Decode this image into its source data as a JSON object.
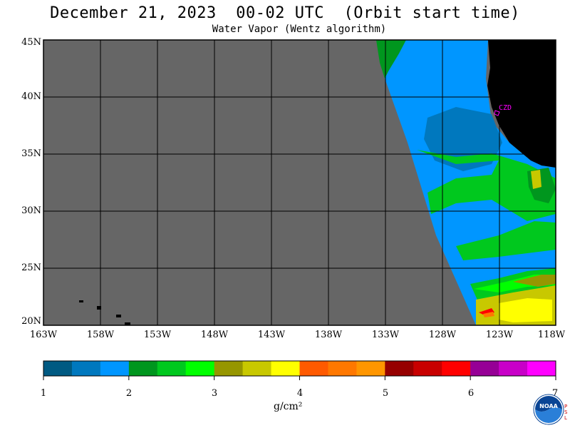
{
  "header": {
    "title": "December 21, 2023  00-02 UTC  (Orbit start time)",
    "subtitle": "Water Vapor (Wentz algorithm)"
  },
  "map": {
    "lat_labels": [
      "45N",
      "40N",
      "35N",
      "30N",
      "25N",
      "20N"
    ],
    "lon_labels": [
      "163W",
      "158W",
      "153W",
      "148W",
      "143W",
      "138W",
      "133W",
      "128W",
      "123W",
      "118W"
    ],
    "station_label": "CZD",
    "colors": {
      "no_data": "#666666",
      "land": "#000000",
      "grid": "#000000"
    }
  },
  "colorbar": {
    "tick_labels": [
      "1",
      "2",
      "3",
      "4",
      "5",
      "6",
      "7"
    ],
    "unit_label": "g/cm²",
    "colors": [
      "#005a82",
      "#0078be",
      "#0096ff",
      "#00961e",
      "#00c81e",
      "#00ff00",
      "#969600",
      "#c8c800",
      "#ffff00",
      "#ff5a00",
      "#ff7800",
      "#ff9600",
      "#960000",
      "#c80000",
      "#ff0000",
      "#960096",
      "#c800c8",
      "#ff00ff"
    ]
  },
  "logo": {
    "name": "NOAA",
    "side_text": "PSL"
  }
}
